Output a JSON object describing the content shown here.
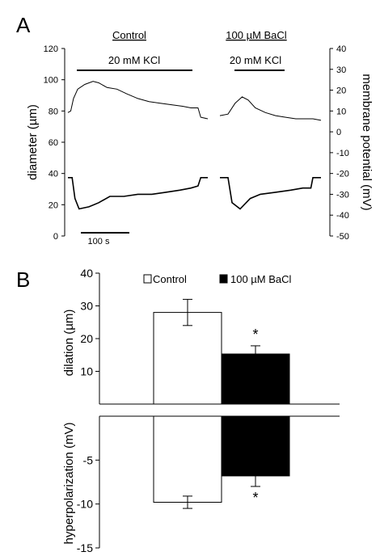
{
  "chart_data": [
    {
      "panel": "A",
      "type": "line",
      "conditions": [
        "Control",
        "100 µM BaCl"
      ],
      "stimulus": [
        "20 mM KCl",
        "20 mM KCl"
      ],
      "left_axis": {
        "label": "diameter (µm)",
        "range": [
          0,
          120
        ],
        "ticks": [
          "0",
          "20",
          "40",
          "60",
          "80",
          "100",
          "120"
        ]
      },
      "right_axis": {
        "label": "membrane potential (mV)",
        "range": [
          -50,
          40
        ],
        "ticks": [
          "40",
          "30",
          "20",
          "10",
          "0",
          "-10",
          "-20",
          "-30",
          "-40",
          "-50"
        ]
      },
      "scale_bar": "100 s",
      "series": [
        {
          "condition": "Control",
          "quantity": "diameter",
          "points": [
            [
              0,
              79
            ],
            [
              0.02,
              80
            ],
            [
              0.04,
              88
            ],
            [
              0.07,
              94
            ],
            [
              0.12,
              97
            ],
            [
              0.18,
              99
            ],
            [
              0.22,
              98
            ],
            [
              0.28,
              95
            ],
            [
              0.35,
              94
            ],
            [
              0.42,
              91
            ],
            [
              0.5,
              88
            ],
            [
              0.58,
              86
            ],
            [
              0.66,
              85
            ],
            [
              0.74,
              84
            ],
            [
              0.82,
              83
            ],
            [
              0.88,
              82
            ],
            [
              0.93,
              82
            ],
            [
              0.95,
              76
            ],
            [
              1.0,
              75
            ]
          ]
        },
        {
          "condition": "Control",
          "quantity": "membrane_potential",
          "points": [
            [
              0,
              -22
            ],
            [
              0.03,
              -22
            ],
            [
              0.05,
              -32
            ],
            [
              0.08,
              -37
            ],
            [
              0.15,
              -36
            ],
            [
              0.22,
              -34
            ],
            [
              0.3,
              -31
            ],
            [
              0.4,
              -31
            ],
            [
              0.5,
              -30
            ],
            [
              0.6,
              -30
            ],
            [
              0.7,
              -29
            ],
            [
              0.8,
              -28
            ],
            [
              0.88,
              -27
            ],
            [
              0.93,
              -26
            ],
            [
              0.95,
              -22
            ],
            [
              1.0,
              -22
            ]
          ]
        },
        {
          "condition": "100 µM BaCl",
          "quantity": "diameter",
          "points": [
            [
              0,
              77
            ],
            [
              0.08,
              78
            ],
            [
              0.15,
              85
            ],
            [
              0.22,
              89
            ],
            [
              0.28,
              87
            ],
            [
              0.35,
              82
            ],
            [
              0.45,
              79
            ],
            [
              0.55,
              77
            ],
            [
              0.65,
              76
            ],
            [
              0.75,
              75
            ],
            [
              0.85,
              75
            ],
            [
              0.92,
              75
            ],
            [
              1.0,
              74
            ]
          ]
        },
        {
          "condition": "100 µM BaCl",
          "quantity": "membrane_potential",
          "points": [
            [
              0,
              -22
            ],
            [
              0.08,
              -22
            ],
            [
              0.12,
              -34
            ],
            [
              0.2,
              -37
            ],
            [
              0.3,
              -32
            ],
            [
              0.4,
              -30
            ],
            [
              0.55,
              -29
            ],
            [
              0.7,
              -28
            ],
            [
              0.82,
              -27
            ],
            [
              0.9,
              -27
            ],
            [
              0.92,
              -22
            ],
            [
              1.0,
              -22
            ]
          ]
        }
      ]
    },
    {
      "panel": "B",
      "type": "bar",
      "categories": [
        "Control",
        "100 µM BaCl"
      ],
      "legend": [
        "Control",
        "100 µM BaCl"
      ],
      "colors": {
        "Control": "#ffffff",
        "100 µM BaCl": "#000000"
      },
      "top_axis": {
        "label": "dilation (µm)",
        "range": [
          0,
          40
        ],
        "ticks": [
          "10",
          "20",
          "30",
          "40"
        ]
      },
      "bottom_axis": {
        "label": "hyperpolarization (mV)",
        "range": [
          0,
          -15
        ],
        "ticks": [
          "-5",
          "-10",
          "-15"
        ]
      },
      "dilation": {
        "values": [
          28,
          15.3
        ],
        "errors": [
          4,
          2.5
        ],
        "significant": [
          false,
          true
        ]
      },
      "hyperpolarization": {
        "values": [
          -9.8,
          -6.8
        ],
        "errors": [
          0.7,
          1.2
        ],
        "significant": [
          false,
          true
        ]
      },
      "significance_marker": "*"
    }
  ]
}
